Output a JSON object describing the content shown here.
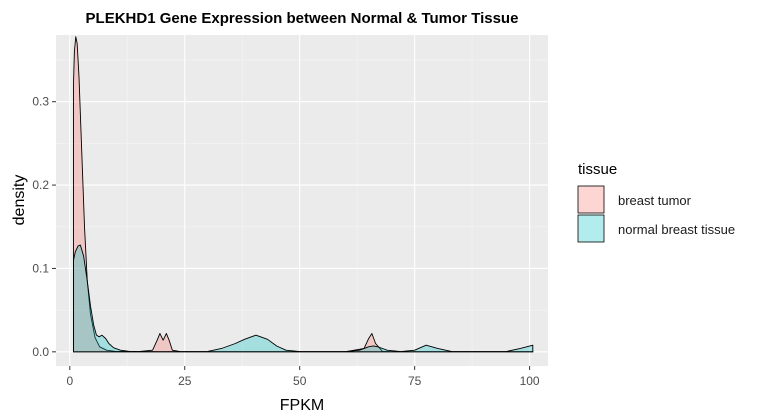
{
  "chart_data": {
    "type": "area",
    "subtype": "density",
    "title": "PLEKHD1 Gene Expression between Normal & Tumor Tissue",
    "xlabel": "FPKM",
    "ylabel": "density",
    "xlim": [
      -3,
      104
    ],
    "ylim": [
      -0.017,
      0.38
    ],
    "x_ticks": [
      0,
      25,
      50,
      75,
      100
    ],
    "x_tick_labels": [
      "0",
      "25",
      "50",
      "75",
      "100"
    ],
    "y_ticks": [
      0.0,
      0.1,
      0.2,
      0.3
    ],
    "y_tick_labels": [
      "0.0",
      "0.1",
      "0.2",
      "0.3"
    ],
    "grid": true,
    "legend": {
      "title": "tissue",
      "position": "right"
    },
    "series": [
      {
        "name": "breast tumor",
        "color": "#F8766D",
        "fill_alpha": 0.3,
        "x": [
          0.8,
          1.0,
          1.3,
          1.6,
          2.0,
          2.6,
          3.2,
          3.8,
          4.5,
          5.5,
          6.5,
          8,
          10,
          15,
          18,
          19,
          19.6,
          20.3,
          21,
          21.6,
          22.3,
          24,
          26,
          40,
          60,
          64,
          65,
          65.7,
          66.5,
          68,
          70,
          90,
          100.7
        ],
        "y": [
          0.32,
          0.36,
          0.378,
          0.37,
          0.33,
          0.24,
          0.15,
          0.085,
          0.045,
          0.017,
          0.006,
          0.002,
          0.0005,
          0.0003,
          0.002,
          0.014,
          0.022,
          0.014,
          0.022,
          0.014,
          0.002,
          0.0003,
          0.0002,
          0.0002,
          0.0002,
          0.004,
          0.016,
          0.022,
          0.01,
          0.0005,
          0.0002,
          0.0002,
          0.0002
        ]
      },
      {
        "name": "normal breast tissue",
        "color": "#00BFC4",
        "fill_alpha": 0.3,
        "x": [
          0.8,
          1.2,
          1.8,
          2.3,
          3.0,
          3.8,
          4.5,
          5.2,
          5.8,
          6.4,
          7.0,
          7.8,
          8.5,
          9.5,
          11,
          13,
          20,
          30,
          33,
          36,
          38,
          40.5,
          43,
          45,
          47,
          50,
          60,
          63,
          65,
          66,
          67,
          69,
          72,
          75,
          77.5,
          80,
          83,
          90,
          95,
          98,
          100.7
        ],
        "y": [
          0.11,
          0.12,
          0.127,
          0.128,
          0.115,
          0.085,
          0.055,
          0.032,
          0.02,
          0.018,
          0.02,
          0.016,
          0.01,
          0.005,
          0.002,
          0.0005,
          0.0002,
          0.0005,
          0.004,
          0.01,
          0.015,
          0.02,
          0.015,
          0.007,
          0.002,
          0.0003,
          0.0003,
          0.002,
          0.006,
          0.007,
          0.006,
          0.002,
          0.0003,
          0.002,
          0.008,
          0.004,
          0.0005,
          0.0003,
          0.0005,
          0.004,
          0.008
        ]
      }
    ]
  }
}
